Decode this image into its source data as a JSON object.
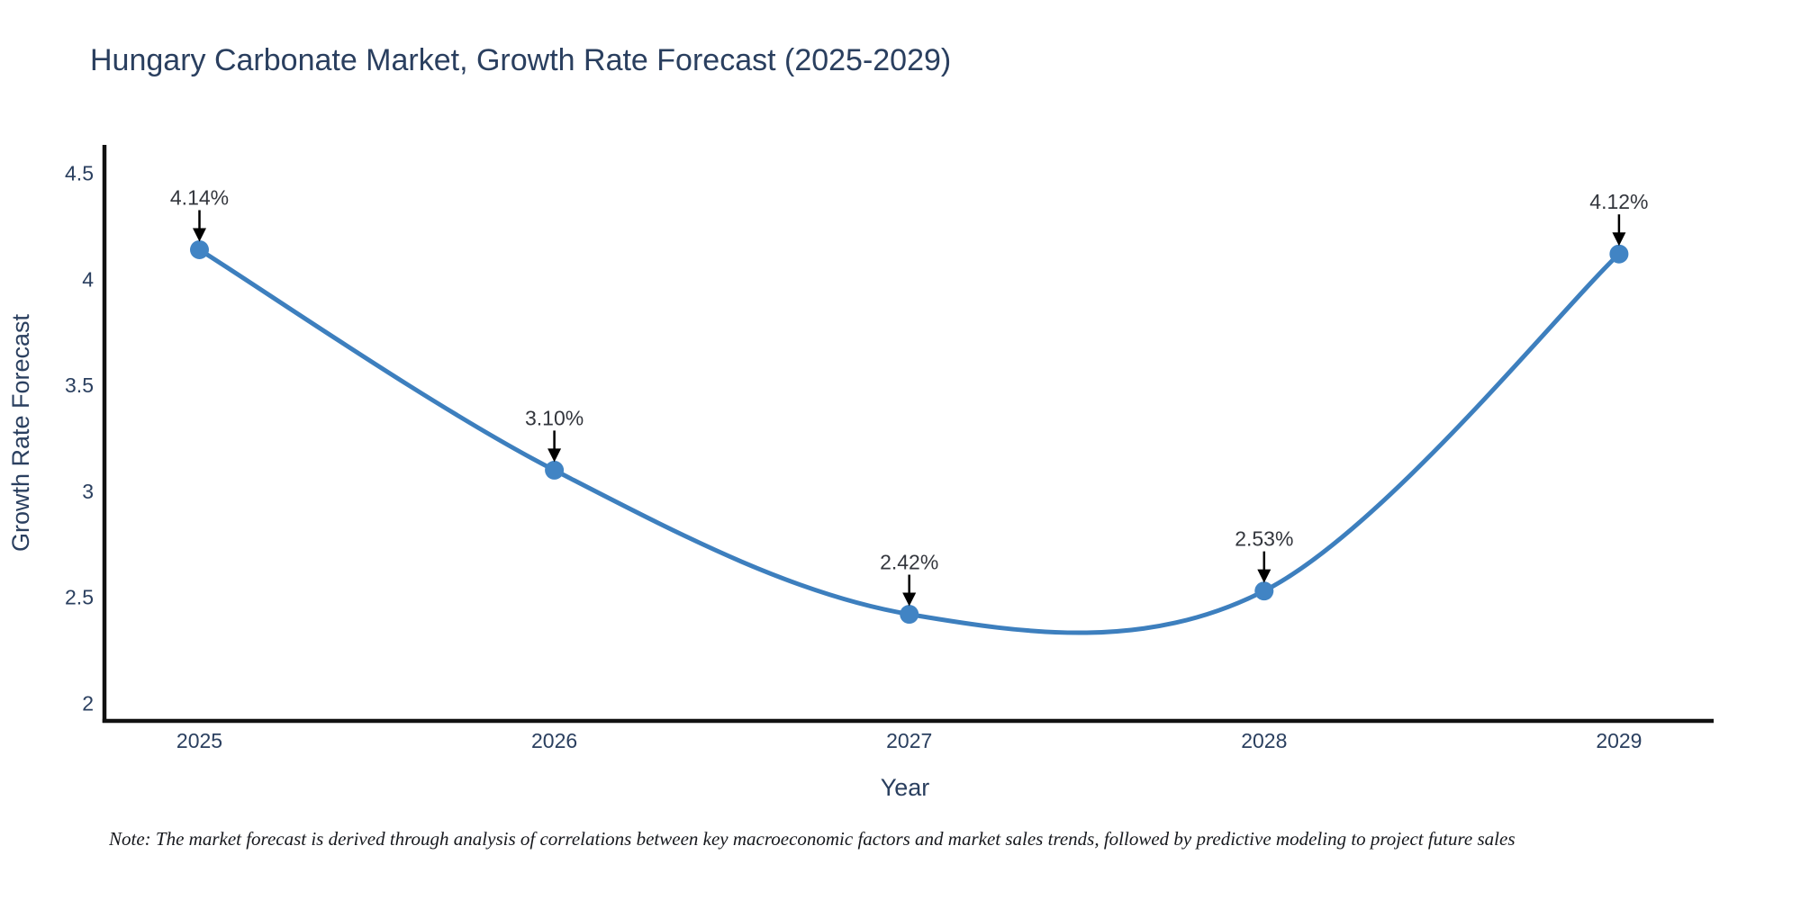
{
  "title": "Hungary Carbonate Market, Growth Rate Forecast (2025-2029)",
  "note": "Note: The market forecast is derived through analysis of correlations between key macroeconomic factors and market sales trends, followed by predictive modeling to project future sales",
  "chart_data": {
    "type": "line",
    "title": "Hungary Carbonate Market, Growth Rate Forecast (2025-2029)",
    "xlabel": "Year",
    "ylabel": "Growth Rate Forecast",
    "x": [
      2025,
      2026,
      2027,
      2028,
      2029
    ],
    "values": [
      4.14,
      3.1,
      2.42,
      2.53,
      4.12
    ],
    "point_labels": [
      "4.14%",
      "3.10%",
      "2.42%",
      "2.53%",
      "4.12%"
    ],
    "xticks": [
      "2025",
      "2026",
      "2027",
      "2028",
      "2029"
    ],
    "yticks": [
      2,
      2.5,
      3,
      3.5,
      4,
      4.5
    ],
    "ylim": [
      1.92,
      4.63
    ],
    "grid": false,
    "legend": "none",
    "line_shape": "spline",
    "marker": "circle",
    "annotations_have_arrows": true,
    "colors": {
      "line": "#3d7fbe",
      "marker": "#4184c4",
      "axis": "#111111",
      "text": "#2a3f5f",
      "annotation_text": "#33363d",
      "arrow": "#000000",
      "background": "#ffffff"
    }
  }
}
